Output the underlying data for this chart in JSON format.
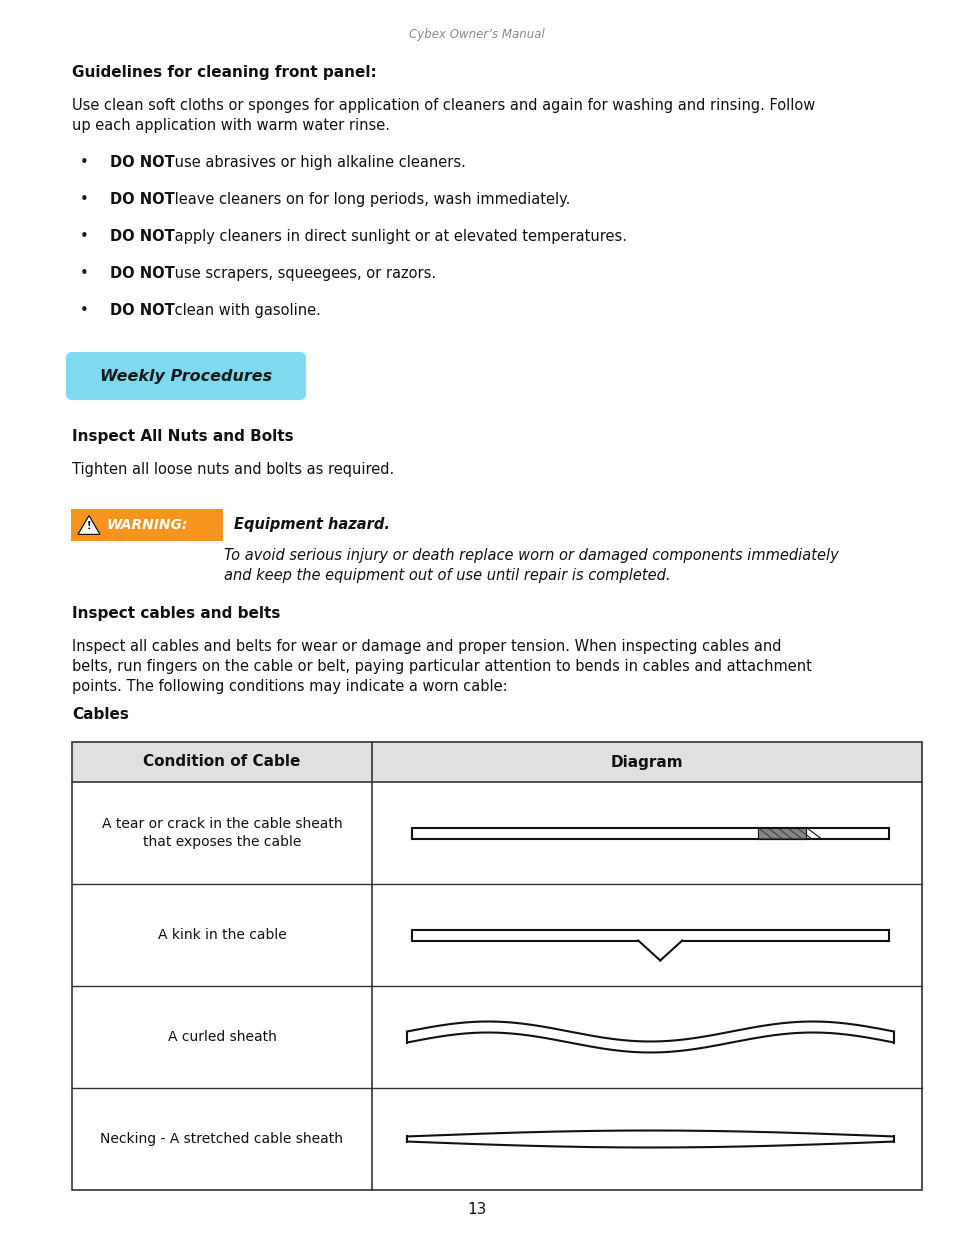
{
  "page_width": 9.54,
  "page_height": 12.35,
  "bg_color": "#ffffff",
  "header_text": "Cybex Owner’s Manual",
  "header_color": "#888888",
  "section1_title": "Guidelines for cleaning front panel:",
  "section1_body": "Use clean soft cloths or sponges for application of cleaners and again for washing and rinsing. Follow\nup each application with warm water rinse.",
  "bullets": [
    "use abrasives or high alkaline cleaners.",
    "leave cleaners on for long periods, wash immediately.",
    "apply cleaners in direct sunlight or at elevated temperatures.",
    "use scrapers, squeegees, or razors.",
    "clean with gasoline."
  ],
  "weekly_procedures_text": "Weekly Procedures",
  "weekly_procedures_bg": "#7dd8f0",
  "weekly_procedures_text_color": "#1a1a1a",
  "section2_title": "Inspect All Nuts and Bolts",
  "section2_body": "Tighten all loose nuts and bolts as required.",
  "warning_label": "WARNING:",
  "warning_label_bg": "#f7941d",
  "warning_bold": "Equipment hazard.",
  "warning_italic": "To avoid serious injury or death replace worn or damaged components immediately\nand keep the equipment out of use until repair is completed.",
  "section3_title": "Inspect cables and belts",
  "section3_body": "Inspect all cables and belts for wear or damage and proper tension. When inspecting cables and\nbelts, run fingers on the cable or belt, paying particular attention to bends in cables and attachment\npoints. The following conditions may indicate a worn cable:",
  "cables_label": "Cables",
  "table_col1_header": "Condition of Cable",
  "table_col2_header": "Diagram",
  "table_rows": [
    "A tear or crack in the cable sheath\nthat exposes the cable",
    "A kink in the cable",
    "A curled sheath",
    "Necking - A stretched cable sheath"
  ],
  "page_number": "13",
  "font_size_body": 10.5,
  "font_size_bold_header": 11,
  "lm": 0.72,
  "rm": 9.22
}
